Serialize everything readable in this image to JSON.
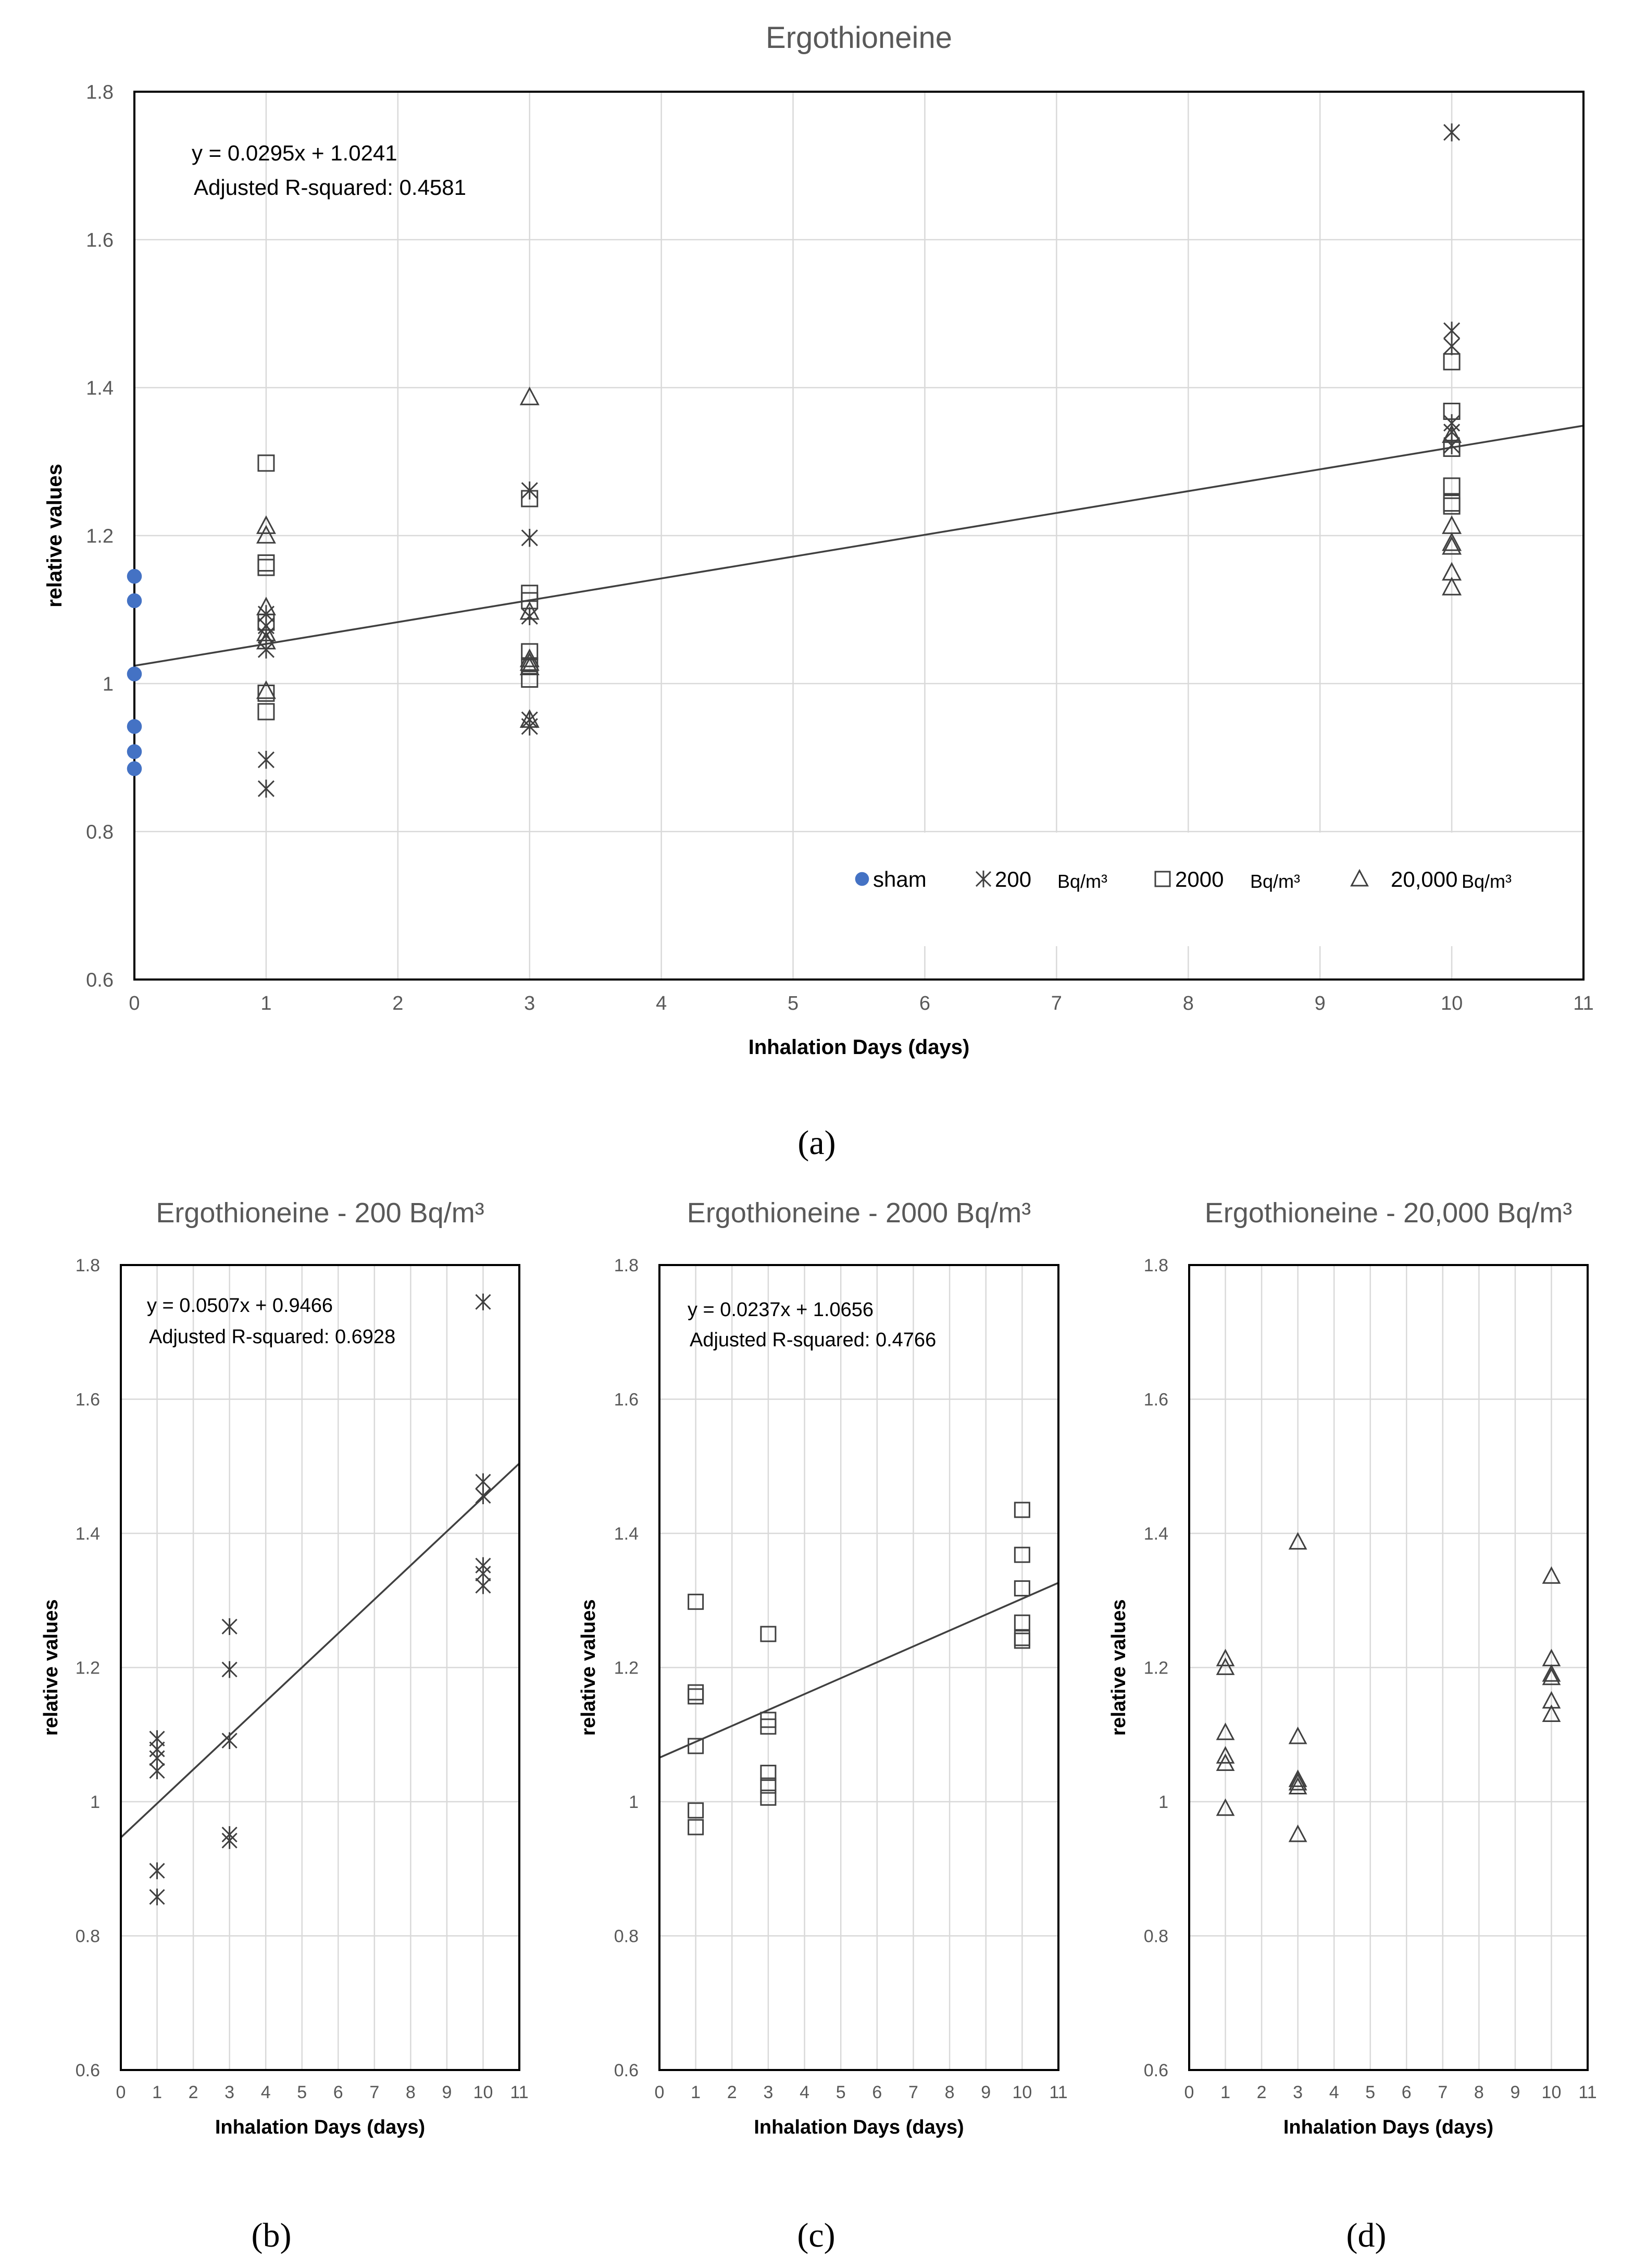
{
  "colors": {
    "sham": "#4472C4",
    "marker": "#404040",
    "title": "#595959",
    "tick": "#595959",
    "grid": "#d9d9d9",
    "axis": "#000000",
    "trend": "#404040"
  },
  "panel_labels": [
    "(a)",
    "(b)",
    "(c)",
    "(d)"
  ],
  "legend": {
    "sham": "sham",
    "s200": "200",
    "s2000": "2000",
    "s20000": "20,000",
    "unit": "Bq/m³"
  },
  "chart_data": [
    {
      "id": "a",
      "type": "scatter",
      "title": "Ergothioneine",
      "xlabel": "Inhalation Days (days)",
      "ylabel": "relative values",
      "xlim": [
        0,
        11
      ],
      "ylim": [
        0.6,
        1.8
      ],
      "xticks": [
        "0",
        "1",
        "2",
        "3",
        "4",
        "5",
        "6",
        "7",
        "8",
        "9",
        "10",
        "11"
      ],
      "yticks": [
        "0.6",
        "0.8",
        "1",
        "1.2",
        "1.4",
        "1.6",
        "1.8"
      ],
      "grid": true,
      "legend_position": "bottom-right",
      "trend": {
        "slope": 0.0295,
        "intercept": 1.0241,
        "x_range": [
          0,
          11
        ]
      },
      "equation": "y = 0.0295x + 1.0241",
      "r2": "Adjusted R-squared:  0.4581",
      "series": [
        {
          "name": "sham",
          "marker": "circle",
          "points": [
            [
              0,
              1.145
            ],
            [
              0,
              1.112
            ],
            [
              0,
              1.013
            ],
            [
              0,
              0.942
            ],
            [
              0,
              0.908
            ],
            [
              0,
              0.885
            ]
          ]
        },
        {
          "name": "200 Bq/m³",
          "marker": "star",
          "points": [
            [
              1,
              1.094
            ],
            [
              1,
              1.078
            ],
            [
              1,
              1.065
            ],
            [
              1,
              1.046
            ],
            [
              1,
              0.897
            ],
            [
              1,
              0.858
            ],
            [
              3,
              1.261
            ],
            [
              3,
              1.197
            ],
            [
              3,
              1.091
            ],
            [
              3,
              0.951
            ],
            [
              3,
              0.942
            ],
            [
              10,
              1.745
            ],
            [
              10,
              1.477
            ],
            [
              10,
              1.456
            ],
            [
              10,
              1.352
            ],
            [
              10,
              1.34
            ],
            [
              10,
              1.322
            ]
          ]
        },
        {
          "name": "2000 Bq/m³",
          "marker": "square",
          "points": [
            [
              1,
              1.298
            ],
            [
              1,
              1.163
            ],
            [
              1,
              1.157
            ],
            [
              1,
              1.083
            ],
            [
              1,
              0.987
            ],
            [
              1,
              0.962
            ],
            [
              3,
              1.25
            ],
            [
              3,
              1.122
            ],
            [
              3,
              1.112
            ],
            [
              3,
              1.043
            ],
            [
              3,
              1.024
            ],
            [
              3,
              1.006
            ],
            [
              10,
              1.435
            ],
            [
              10,
              1.368
            ],
            [
              10,
              1.318
            ],
            [
              10,
              1.267
            ],
            [
              10,
              1.244
            ],
            [
              10,
              1.24
            ]
          ]
        },
        {
          "name": "20,000 Bq/m³",
          "marker": "triangle",
          "points": [
            [
              1,
              1.213
            ],
            [
              1,
              1.2
            ],
            [
              1,
              1.103
            ],
            [
              1,
              1.068
            ],
            [
              1,
              1.057
            ],
            [
              1,
              0.99
            ],
            [
              3,
              1.387
            ],
            [
              3,
              1.097
            ],
            [
              3,
              1.033
            ],
            [
              3,
              1.028
            ],
            [
              3,
              1.022
            ],
            [
              3,
              0.951
            ],
            [
              10,
              1.336
            ],
            [
              10,
              1.213
            ],
            [
              10,
              1.19
            ],
            [
              10,
              1.185
            ],
            [
              10,
              1.15
            ],
            [
              10,
              1.13
            ]
          ]
        }
      ]
    },
    {
      "id": "b",
      "type": "scatter",
      "title": "Ergothioneine - 200 Bq/m³",
      "xlabel": "Inhalation Days (days)",
      "ylabel": "relative values",
      "xlim": [
        0,
        11
      ],
      "ylim": [
        0.6,
        1.8
      ],
      "xticks": [
        "0",
        "1",
        "2",
        "3",
        "4",
        "5",
        "6",
        "7",
        "8",
        "9",
        "10",
        "11"
      ],
      "yticks": [
        "0.6",
        "0.8",
        "1",
        "1.2",
        "1.4",
        "1.6",
        "1.8"
      ],
      "grid": true,
      "trend": {
        "slope": 0.0507,
        "intercept": 0.9466,
        "x_range": [
          0,
          11
        ]
      },
      "equation": "y = 0.0507x + 0.9466",
      "r2": "Adjusted R-squared:  0.6928",
      "series": [
        {
          "name": "200 Bq/m³",
          "marker": "star",
          "points": [
            [
              1,
              1.094
            ],
            [
              1,
              1.078
            ],
            [
              1,
              1.065
            ],
            [
              1,
              1.046
            ],
            [
              1,
              0.897
            ],
            [
              1,
              0.858
            ],
            [
              3,
              1.261
            ],
            [
              3,
              1.197
            ],
            [
              3,
              1.091
            ],
            [
              3,
              0.951
            ],
            [
              3,
              0.942
            ],
            [
              10,
              1.745
            ],
            [
              10,
              1.477
            ],
            [
              10,
              1.456
            ],
            [
              10,
              1.352
            ],
            [
              10,
              1.34
            ],
            [
              10,
              1.322
            ]
          ]
        }
      ]
    },
    {
      "id": "c",
      "type": "scatter",
      "title": "Ergothioneine - 2000 Bq/m³",
      "xlabel": "Inhalation Days (days)",
      "ylabel": "relative values",
      "xlim": [
        0,
        11
      ],
      "ylim": [
        0.6,
        1.8
      ],
      "xticks": [
        "0",
        "1",
        "2",
        "3",
        "4",
        "5",
        "6",
        "7",
        "8",
        "9",
        "10",
        "11"
      ],
      "yticks": [
        "0.6",
        "0.8",
        "1",
        "1.2",
        "1.4",
        "1.6",
        "1.8"
      ],
      "grid": true,
      "trend": {
        "slope": 0.0237,
        "intercept": 1.0656,
        "x_range": [
          0,
          11
        ]
      },
      "equation": "y = 0.0237x + 1.0656",
      "r2": "Adjusted R-squared:  0.4766",
      "series": [
        {
          "name": "2000 Bq/m³",
          "marker": "square",
          "points": [
            [
              1,
              1.298
            ],
            [
              1,
              1.163
            ],
            [
              1,
              1.157
            ],
            [
              1,
              1.083
            ],
            [
              1,
              0.987
            ],
            [
              1,
              0.962
            ],
            [
              3,
              1.25
            ],
            [
              3,
              1.122
            ],
            [
              3,
              1.112
            ],
            [
              3,
              1.043
            ],
            [
              3,
              1.024
            ],
            [
              3,
              1.006
            ],
            [
              10,
              1.435
            ],
            [
              10,
              1.368
            ],
            [
              10,
              1.318
            ],
            [
              10,
              1.267
            ],
            [
              10,
              1.244
            ],
            [
              10,
              1.24
            ]
          ]
        }
      ]
    },
    {
      "id": "d",
      "type": "scatter",
      "title": "Ergothioneine - 20,000 Bq/m³",
      "xlabel": "Inhalation Days (days)",
      "ylabel": "relative values",
      "xlim": [
        0,
        11
      ],
      "ylim": [
        0.6,
        1.8
      ],
      "xticks": [
        "0",
        "1",
        "2",
        "3",
        "4",
        "5",
        "6",
        "7",
        "8",
        "9",
        "10",
        "11"
      ],
      "yticks": [
        "0.6",
        "0.8",
        "1",
        "1.2",
        "1.4",
        "1.6",
        "1.8"
      ],
      "grid": true,
      "series": [
        {
          "name": "20,000 Bq/m³",
          "marker": "triangle",
          "points": [
            [
              1,
              1.213
            ],
            [
              1,
              1.2
            ],
            [
              1,
              1.103
            ],
            [
              1,
              1.068
            ],
            [
              1,
              1.057
            ],
            [
              1,
              0.99
            ],
            [
              3,
              1.387
            ],
            [
              3,
              1.097
            ],
            [
              3,
              1.033
            ],
            [
              3,
              1.028
            ],
            [
              3,
              1.022
            ],
            [
              3,
              0.951
            ],
            [
              10,
              1.336
            ],
            [
              10,
              1.213
            ],
            [
              10,
              1.19
            ],
            [
              10,
              1.185
            ],
            [
              10,
              1.15
            ],
            [
              10,
              1.13
            ]
          ]
        }
      ]
    }
  ]
}
